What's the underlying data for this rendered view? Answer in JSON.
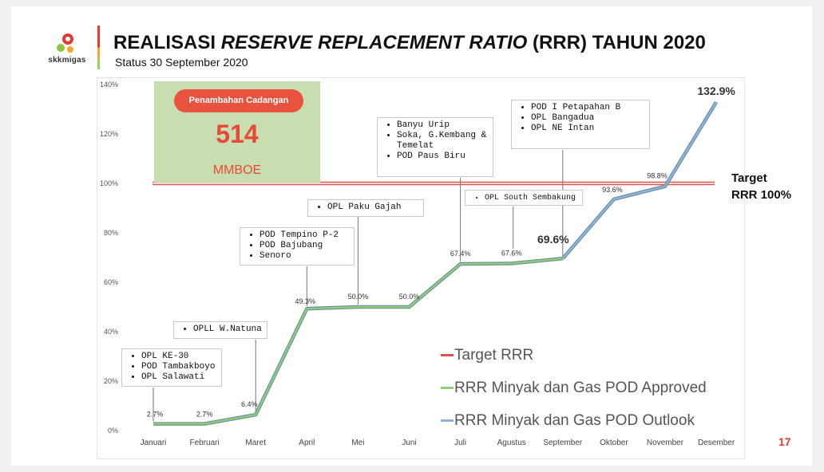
{
  "header": {
    "logo_text": "skkmigas",
    "title_part1": "REALISASI ",
    "title_italic": "RESERVE REPLACEMENT RATIO",
    "title_part2": " (RRR) TAHUN 2020",
    "subtitle": "Status 30 September 2020"
  },
  "highlight": {
    "badge": "Penambahan Cadangan",
    "value": "514",
    "unit": "MMBOE"
  },
  "target_label": {
    "line1": "Target",
    "line2": "RRR 100%"
  },
  "callouts": [
    {
      "items": [
        "OPL KE-30",
        "POD Tambakboyo",
        "OPL Salawati"
      ]
    },
    {
      "items": [
        "OPLL W.Natuna"
      ]
    },
    {
      "items": [
        "POD Tempino P-2",
        "POD Bajubang",
        "Senoro"
      ]
    },
    {
      "items": [
        "OPL Paku Gajah"
      ]
    },
    {
      "items": [
        "Banyu Urip",
        "Soka, G.Kembang & Temelat",
        "POD Paus Biru"
      ]
    },
    {
      "items": [
        "OPL South Sembakung"
      ]
    },
    {
      "items": [
        "POD I Petapahan B",
        "OPL Bangadua",
        "OPL NE Intan"
      ]
    }
  ],
  "legend": [
    {
      "label": "Target RRR",
      "color": "#d9534f"
    },
    {
      "label": "RRR Minyak dan Gas POD Approved",
      "color": "#8fce7a"
    },
    {
      "label": "RRR Minyak dan Gas POD Outlook",
      "color": "#8fb4e3"
    }
  ],
  "page_number": "17",
  "chart_data": {
    "type": "line",
    "categories": [
      "Januari",
      "Februari",
      "Maret",
      "April",
      "Mei",
      "Juni",
      "Juli",
      "Agustus",
      "September",
      "Oktober",
      "November",
      "Desember"
    ],
    "series": [
      {
        "name": "RRR Minyak dan Gas POD Approved",
        "color": "#8fce7a",
        "values": [
          2.7,
          2.7,
          6.4,
          49.3,
          50.0,
          50.0,
          67.4,
          67.6,
          69.6,
          null,
          null,
          null
        ]
      },
      {
        "name": "RRR Minyak dan Gas POD Outlook",
        "color": "#8fb4e3",
        "values": [
          null,
          null,
          null,
          null,
          null,
          null,
          null,
          null,
          69.6,
          93.6,
          98.8,
          132.9
        ]
      },
      {
        "name": "Target RRR",
        "color": "#d9534f",
        "values": [
          100,
          100,
          100,
          100,
          100,
          100,
          100,
          100,
          100,
          100,
          100,
          100
        ]
      }
    ],
    "data_labels": [
      "2.7%",
      "2.7%",
      "6.4%",
      "49.3%",
      "50.0%",
      "50.0%",
      "67.4%",
      "67.6%",
      "69.6%",
      "93.6%",
      "98.8%",
      "132.9%"
    ],
    "yticks": [
      "0%",
      "20%",
      "40%",
      "60%",
      "80%",
      "100%",
      "120%",
      "140%"
    ],
    "ylim": [
      0,
      140
    ],
    "grid": false,
    "legend_position": "bottom-right"
  }
}
